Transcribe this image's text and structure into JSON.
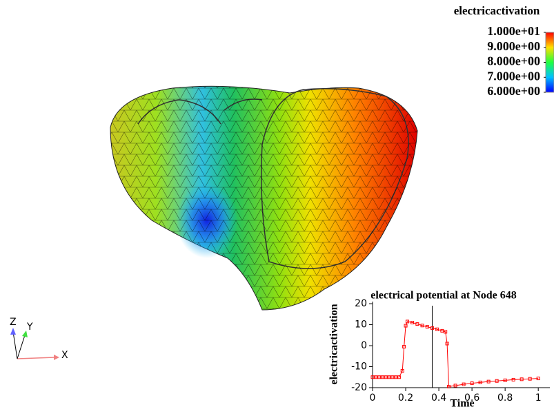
{
  "colorbar": {
    "title": "electricactivation",
    "lim": [
      6,
      10
    ],
    "ticks": [
      {
        "value": 10,
        "label": "1.000e+01"
      },
      {
        "value": 9,
        "label": "9.000e+00"
      },
      {
        "value": 8,
        "label": "8.000e+00"
      },
      {
        "value": 7,
        "label": "7.000e+00"
      },
      {
        "value": 6,
        "label": "6.000e+00"
      }
    ]
  },
  "axes_triad": {
    "x": "X",
    "y": "Y",
    "z": "Z"
  },
  "chart_data": {
    "type": "line",
    "title": "electrical potential at Node 648",
    "x_label": "Time",
    "y_label": "electricactivation",
    "x": [
      0,
      0.02,
      0.04,
      0.06,
      0.08,
      0.1,
      0.12,
      0.14,
      0.16,
      0.18,
      0.19,
      0.2,
      0.21,
      0.24,
      0.27,
      0.3,
      0.33,
      0.36,
      0.39,
      0.42,
      0.44,
      0.45,
      0.46,
      0.5,
      0.55,
      0.6,
      0.65,
      0.7,
      0.75,
      0.8,
      0.85,
      0.9,
      0.95,
      1.0
    ],
    "values": [
      -15,
      -15,
      -15,
      -15,
      -15,
      -15,
      -15,
      -15,
      -15,
      -12,
      -0.5,
      9.5,
      11.5,
      11,
      10.3,
      9.6,
      9,
      8.4,
      7.8,
      7.1,
      6.6,
      1,
      -19.5,
      -19,
      -18.4,
      -17.9,
      -17.5,
      -17.1,
      -16.8,
      -16.5,
      -16.2,
      -16,
      -15.8,
      -15.6
    ],
    "color": "#ff0000",
    "time_marker": 0.36,
    "xlim": [
      0,
      1.07
    ],
    "ylim": [
      -20,
      21
    ],
    "xticks": [
      0,
      0.2,
      0.4,
      0.6,
      0.8,
      1
    ],
    "yticks": [
      -20,
      -10,
      0,
      10,
      20
    ]
  }
}
